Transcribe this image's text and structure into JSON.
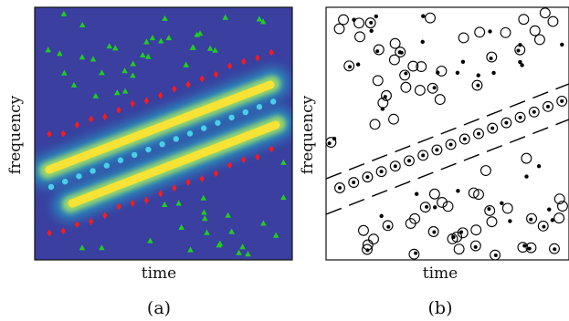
{
  "panel_a": {
    "xlabel": "time",
    "ylabel": "frequency",
    "caption": "(a)",
    "colors": {
      "background": "#3a3fa0",
      "ridge_core": "#f2e23a",
      "ridge_halo": "#2bb5c8",
      "center_points": "#48d0e8",
      "diamonds": "#ff1a1a",
      "triangles": "#22cc22"
    }
  },
  "panel_b": {
    "xlabel": "time",
    "ylabel": "frequency",
    "caption": "(b)",
    "colors": {
      "frame": "#000000",
      "markers": "#000000",
      "dashes": "#000000"
    }
  }
}
